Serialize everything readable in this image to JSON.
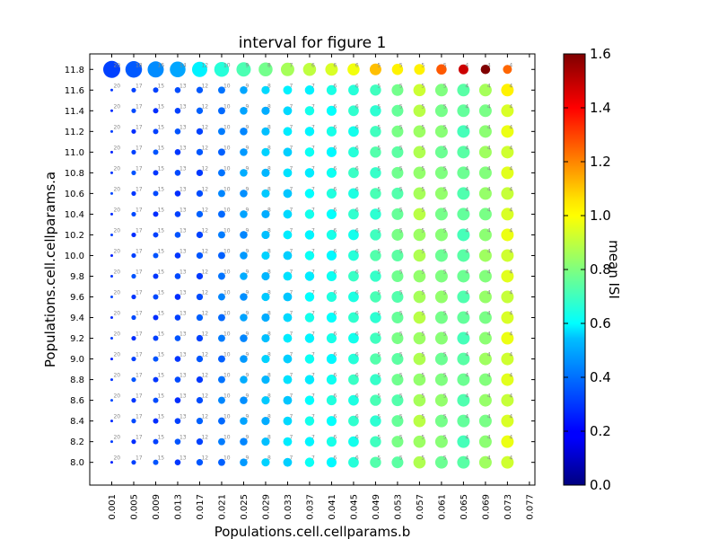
{
  "chart_data": {
    "type": "scatter",
    "title": "interval for figure 1",
    "xlabel": "Populations.cell.cellparams.b",
    "ylabel": "Populations.cell.cellparams.a",
    "x_ticks": [
      "0.001",
      "0.005",
      "0.009",
      "0.013",
      "0.017",
      "0.021",
      "0.025",
      "0.029",
      "0.033",
      "0.037",
      "0.041",
      "0.045",
      "0.049",
      "0.053",
      "0.057",
      "0.061",
      "0.065",
      "0.069",
      "0.073",
      "0.077"
    ],
    "y_ticks": [
      "8.0",
      "8.2",
      "8.4",
      "8.6",
      "8.8",
      "9.0",
      "9.2",
      "9.4",
      "9.6",
      "9.8",
      "10.0",
      "10.2",
      "10.4",
      "10.6",
      "10.8",
      "11.0",
      "11.2",
      "11.4",
      "11.6",
      "11.8"
    ],
    "xlim": [
      -0.003,
      0.078
    ],
    "ylim": [
      7.78,
      11.95
    ],
    "colorbar": {
      "label": "mean ISI",
      "range": [
        0.0,
        1.6
      ],
      "ticks": [
        "0.0",
        "0.2",
        "0.4",
        "0.6",
        "0.8",
        "1.0",
        "1.2",
        "1.4",
        "1.6"
      ]
    },
    "grid": false,
    "point_labels": [
      "20",
      "17",
      "15",
      "13",
      "12",
      "10",
      "9",
      "8",
      "7",
      "7",
      "6",
      "6",
      "5",
      "5",
      "5",
      "5",
      "4",
      "4",
      "4"
    ],
    "point_labels_row_11_8": [
      "20",
      "18",
      "16",
      "14",
      "12",
      "10",
      "9",
      "8",
      "7",
      "6",
      "6",
      "6",
      "5",
      "5",
      "5",
      "5",
      "4",
      "4",
      "4"
    ],
    "color_row_11_8": [
      0.3,
      0.34,
      0.42,
      0.46,
      0.58,
      0.66,
      0.72,
      0.78,
      0.86,
      0.9,
      0.94,
      0.98,
      1.1,
      1.02,
      1.02,
      1.26,
      1.48,
      1.6,
      1.24
    ],
    "color_row_11_6": [
      0.28,
      0.3,
      0.3,
      0.32,
      0.34,
      0.38,
      0.46,
      0.54,
      0.58,
      0.58,
      0.64,
      0.66,
      0.7,
      0.78,
      0.92,
      0.8,
      0.74,
      0.86,
      1.02
    ],
    "color_row_typical": [
      0.28,
      0.3,
      0.3,
      0.3,
      0.32,
      0.38,
      0.44,
      0.5,
      0.54,
      0.6,
      0.62,
      0.66,
      0.7,
      0.76,
      0.86,
      0.8,
      0.74,
      0.82,
      0.94
    ]
  }
}
